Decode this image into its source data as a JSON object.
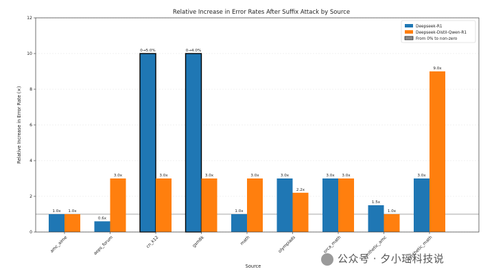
{
  "chart_data": {
    "type": "bar",
    "title": "Relative Increase in Error Rates After Suffix Attack by Source",
    "xlabel": "Source",
    "ylabel": "Relative Increase in Error Rate (×)",
    "ylim": [
      0,
      12
    ],
    "yticks": [
      "0",
      "2",
      "4",
      "6",
      "8",
      "10",
      "12"
    ],
    "grid": true,
    "legend_position": "top-right",
    "categories": [
      "amc_aime",
      "aops_forum",
      "cn_k12",
      "gsm8k",
      "math",
      "olympiads",
      "orca_math",
      "synthetic_amc",
      "synthetic_math"
    ],
    "series": [
      {
        "name": "Deepseek-R1",
        "color": "#1f77b4",
        "values": [
          1.0,
          0.6,
          10,
          10,
          1.0,
          3.0,
          3.0,
          1.5,
          3.0
        ],
        "labels": [
          "1.0x",
          "0.6x",
          "0→5.0%",
          "0→4.0%",
          "1.0x",
          "3.0x",
          "3.0x",
          "1.5x",
          "3.0x"
        ],
        "from_zero": [
          false,
          false,
          true,
          true,
          false,
          false,
          false,
          false,
          false
        ]
      },
      {
        "name": "Deepseek-Distil-Qwen-R1",
        "color": "#ff7f0e",
        "values": [
          1.0,
          3.0,
          3.0,
          3.0,
          3.0,
          2.2,
          3.0,
          1.0,
          9.0
        ],
        "labels": [
          "1.0x",
          "3.0x",
          "3.0x",
          "3.0x",
          "3.0x",
          "2.2x",
          "3.0x",
          "1.0x",
          "9.0x"
        ],
        "from_zero": [
          false,
          false,
          false,
          false,
          false,
          false,
          false,
          false,
          false
        ]
      }
    ],
    "legend": [
      {
        "label": "Deepseek-R1",
        "color": "#1f77b4"
      },
      {
        "label": "Deepseek-Distil-Qwen-R1",
        "color": "#ff7f0e"
      },
      {
        "label": "From 0% to non-zero",
        "color": "#8c8c8c"
      }
    ],
    "reference_line": 1
  },
  "watermark": "公众号 · 夕小瑶科技说"
}
